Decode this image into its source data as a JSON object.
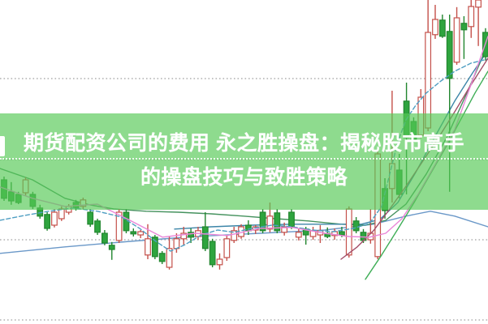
{
  "page": {
    "background": "#ffffff"
  },
  "banner": {
    "title_line1": "期货配资公司的费用 永之胜操盘：揭秘股市高手",
    "title_line2": "的操盘技巧与致胜策略",
    "text_color": "#ffffff",
    "bg_color_rgba": "rgba(87,201,87,0.67)"
  },
  "chart_data": {
    "type": "candlestick",
    "title": "",
    "xlabel": "",
    "ylabel": "",
    "note": "Daily K-line (candlestick) stock chart with moving-average overlays; no axis tick labels are visible in the image. Prices are normalized 0-100 (bottom=0, top=100) read from pixel positions.",
    "price_scale": "normalized-0-100",
    "ylim": [
      0,
      100
    ],
    "grid": "horizontal dotted lines",
    "gridlines_price": [
      75.75,
      50.75,
      26.0,
      1.25
    ],
    "up_color": "#c4504a",
    "up_fill": "#ffffff",
    "down_color": "#22862f",
    "down_fill": "#2ea43e",
    "grid_color": "#a0a0a0",
    "candles_ohlc": [
      [
        44.5,
        45.5,
        38,
        38.8
      ],
      [
        40.8,
        43.8,
        36.8,
        38
      ],
      [
        40,
        40.8,
        37,
        37.5
      ],
      [
        40.5,
        45.3,
        39.5,
        44.5
      ],
      [
        40,
        40.8,
        35.5,
        36.3
      ],
      [
        35.8,
        36.8,
        32.5,
        33.3
      ],
      [
        33.8,
        34.5,
        28.8,
        29.5
      ],
      [
        30.5,
        35.5,
        29.8,
        34.5
      ],
      [
        32.5,
        36.3,
        31.8,
        35.5
      ],
      [
        34.5,
        37,
        33.8,
        36.3
      ],
      [
        37.5,
        38.3,
        35,
        35.8
      ],
      [
        36.3,
        39,
        35.5,
        38.3
      ],
      [
        34.5,
        35.5,
        30,
        30.8
      ],
      [
        31.8,
        32.5,
        27.5,
        28.3
      ],
      [
        28,
        29,
        24.3,
        25
      ],
      [
        24.3,
        25.3,
        19.8,
        23
      ],
      [
        25.8,
        35.5,
        25,
        34.5
      ],
      [
        34.5,
        35.5,
        28,
        28.8
      ],
      [
        28.5,
        29.5,
        27,
        27.8
      ],
      [
        27.5,
        29,
        26.5,
        28.5
      ],
      [
        21.3,
        30.8,
        20,
        26.3
      ],
      [
        26.8,
        27.5,
        20,
        20.8
      ],
      [
        21.8,
        22.5,
        18.5,
        19.3
      ],
      [
        17.5,
        27,
        16.8,
        23.3
      ],
      [
        23.3,
        28,
        22,
        26.3
      ],
      [
        26.3,
        30,
        24.3,
        28
      ],
      [
        28.3,
        29.5,
        25,
        26.8
      ],
      [
        27,
        30,
        26,
        28.8
      ],
      [
        30,
        34.5,
        22.5,
        23.3
      ],
      [
        25.5,
        26.3,
        17.5,
        18.3
      ],
      [
        18.3,
        21.8,
        16.8,
        20
      ],
      [
        20.5,
        27.5,
        19.5,
        26.3
      ],
      [
        25.8,
        30,
        25,
        28.8
      ],
      [
        27,
        30.8,
        26.3,
        30
      ],
      [
        30.5,
        32,
        27.5,
        28.8
      ],
      [
        29,
        30.5,
        27.8,
        30
      ],
      [
        34.5,
        35.5,
        28,
        28.8
      ],
      [
        29.3,
        37.5,
        28.3,
        33.3
      ],
      [
        34.3,
        35.5,
        28,
        28.8
      ],
      [
        28.3,
        31.3,
        27.3,
        30
      ],
      [
        34.5,
        35.5,
        29.3,
        30
      ],
      [
        26.8,
        29.3,
        25.8,
        28.3
      ],
      [
        29.3,
        30,
        24.5,
        27.5
      ],
      [
        27,
        30,
        26,
        28.8
      ],
      [
        27.5,
        30.5,
        25,
        28.8
      ],
      [
        28,
        29.8,
        26.5,
        27
      ],
      [
        27.3,
        29.5,
        26,
        28.5
      ],
      [
        28.5,
        30,
        26.8,
        27.5
      ],
      [
        21.3,
        36.3,
        20.5,
        35.5
      ],
      [
        31.8,
        33,
        28,
        28.8
      ],
      [
        28.3,
        29.3,
        25,
        25.8
      ],
      [
        26,
        35.5,
        24.8,
        28
      ],
      [
        20.8,
        53.5,
        20,
        52.5
      ],
      [
        41.8,
        45,
        32.5,
        35
      ],
      [
        41.8,
        72,
        37.5,
        49.5
      ],
      [
        47.5,
        52.5,
        38.8,
        40
      ],
      [
        68.8,
        74.5,
        40,
        57.5
      ],
      [
        62.5,
        63.8,
        56,
        56.8
      ],
      [
        58.3,
        72.5,
        57.3,
        70
      ],
      [
        60.5,
        100,
        59.5,
        90
      ],
      [
        89.3,
        98.5,
        88,
        94
      ],
      [
        93.8,
        95.5,
        88.3,
        88.8
      ],
      [
        90.3,
        95.5,
        40.8,
        75.8
      ],
      [
        80.8,
        97.8,
        80,
        94.5
      ],
      [
        92.8,
        95,
        81.8,
        90.8
      ],
      [
        91.8,
        100,
        88.3,
        98
      ],
      [
        97.8,
        100,
        85.8,
        100
      ],
      [
        90,
        91.3,
        81.3,
        82.5
      ]
    ],
    "moving_averages": [
      {
        "name": "ma-long-blue",
        "color": "#6a98c8",
        "layer": "under",
        "dash": "",
        "points": [
          [
            0,
            21.8
          ],
          [
            80,
            23.8
          ],
          [
            160,
            25.5
          ],
          [
            240,
            27
          ],
          [
            320,
            28
          ],
          [
            400,
            29
          ],
          [
            460,
            30.8
          ],
          [
            500,
            33.3
          ],
          [
            530,
            34.8
          ],
          [
            560,
            33.3
          ],
          [
            601,
            30
          ]
        ]
      },
      {
        "name": "ma-dark-green",
        "color": "#45925e",
        "layer": "under",
        "dash": "",
        "points": [
          [
            0,
            48
          ],
          [
            40,
            44.5
          ],
          [
            80,
            38.8
          ],
          [
            110,
            36.8
          ],
          [
            140,
            35.5
          ],
          [
            180,
            34.8
          ],
          [
            220,
            34.5
          ],
          [
            260,
            34
          ],
          [
            300,
            33.3
          ],
          [
            340,
            32.5
          ],
          [
            380,
            31.8
          ],
          [
            420,
            30.8
          ],
          [
            450,
            30.5
          ],
          [
            475,
            32
          ],
          [
            500,
            37
          ],
          [
            525,
            46.3
          ],
          [
            550,
            57.5
          ],
          [
            575,
            71.3
          ],
          [
            601,
            86.3
          ]
        ]
      },
      {
        "name": "ma-teal-flat",
        "color": "#3c85a8",
        "layer": "under",
        "dash": "",
        "points": [
          [
            215,
            29.3
          ],
          [
            260,
            30
          ],
          [
            310,
            30.5
          ],
          [
            360,
            30.8
          ],
          [
            410,
            30.8
          ],
          [
            445,
            30.8
          ],
          [
            468,
            32.3
          ],
          [
            490,
            37.5
          ],
          [
            512,
            46.8
          ],
          [
            535,
            57.5
          ],
          [
            560,
            68.8
          ],
          [
            582,
            77.5
          ],
          [
            601,
            84.5
          ]
        ]
      },
      {
        "name": "ma-teal-dashed",
        "color": "#4f9ec2",
        "layer": "over",
        "dash": "5 3",
        "points": [
          [
            0,
            32
          ],
          [
            30,
            33.5
          ],
          [
            60,
            34.8
          ],
          [
            90,
            35.8
          ],
          [
            120,
            34.8
          ],
          [
            150,
            33
          ],
          [
            172,
            29.5
          ],
          [
            192,
            25.5
          ],
          [
            210,
            22.5
          ],
          [
            228,
            24.5
          ],
          [
            248,
            27.5
          ],
          [
            268,
            29
          ],
          [
            288,
            28.3
          ],
          [
            310,
            29.5
          ],
          [
            335,
            30.5
          ],
          [
            360,
            30
          ],
          [
            385,
            29
          ],
          [
            410,
            28.5
          ],
          [
            435,
            29.5
          ],
          [
            455,
            31
          ],
          [
            470,
            36.3
          ],
          [
            480,
            46.3
          ],
          [
            490,
            56.3
          ],
          [
            500,
            63
          ],
          [
            512,
            67.5
          ],
          [
            525,
            71.3
          ],
          [
            543,
            75
          ],
          [
            560,
            78
          ],
          [
            580,
            80.5
          ],
          [
            601,
            81.8
          ]
        ]
      },
      {
        "name": "ma-maroon",
        "color": "#a34d68",
        "layer": "over",
        "dash": "",
        "points": [
          [
            420,
            20
          ],
          [
            440,
            23.8
          ],
          [
            460,
            28.8
          ],
          [
            480,
            35.5
          ],
          [
            500,
            42.5
          ],
          [
            520,
            50
          ],
          [
            540,
            57.5
          ],
          [
            560,
            65.5
          ],
          [
            578,
            73
          ],
          [
            601,
            82
          ]
        ]
      },
      {
        "name": "ma-bright-green",
        "color": "#3fae57",
        "layer": "over",
        "dash": "",
        "points": [
          [
            450,
            13.8
          ],
          [
            470,
            21.3
          ],
          [
            490,
            29.3
          ],
          [
            510,
            37.5
          ],
          [
            530,
            46.3
          ],
          [
            550,
            55
          ],
          [
            570,
            64.3
          ],
          [
            585,
            71.3
          ],
          [
            601,
            78
          ]
        ]
      },
      {
        "name": "ma-pink",
        "color": "#ea86d8",
        "layer": "over",
        "dash": "",
        "points": [
          [
            0,
            42.3
          ],
          [
            40,
            38.8
          ],
          [
            80,
            36.3
          ],
          [
            120,
            37
          ],
          [
            160,
            32
          ],
          [
            200,
            26.8
          ],
          [
            240,
            28
          ],
          [
            280,
            27.3
          ],
          [
            320,
            29.5
          ],
          [
            360,
            29.8
          ],
          [
            400,
            28
          ],
          [
            430,
            27
          ],
          [
            455,
            26.8
          ],
          [
            475,
            28
          ],
          [
            495,
            32.5
          ],
          [
            515,
            40
          ],
          [
            535,
            48.8
          ],
          [
            560,
            60
          ],
          [
            580,
            73.8
          ],
          [
            601,
            88.8
          ]
        ]
      }
    ]
  }
}
